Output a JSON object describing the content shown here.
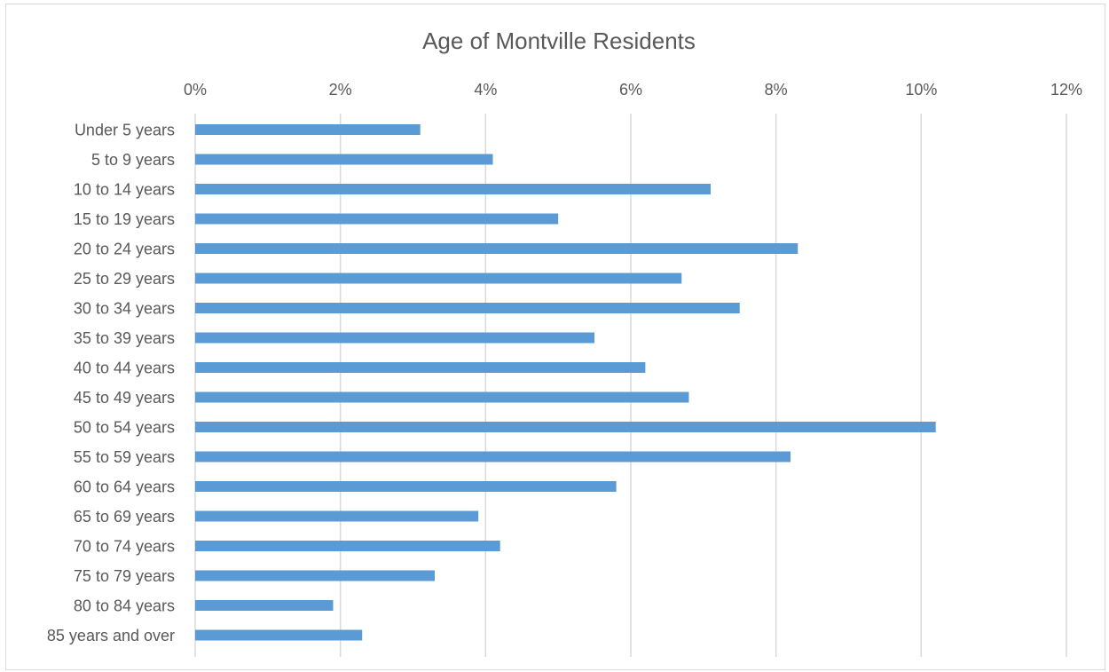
{
  "chart_data": {
    "type": "bar",
    "orientation": "horizontal",
    "title": "Age of Montville Residents",
    "xlabel": "",
    "ylabel": "",
    "xlim": [
      0,
      12
    ],
    "x_ticks": [
      0,
      2,
      4,
      6,
      8,
      10,
      12
    ],
    "x_tick_labels": [
      "0%",
      "2%",
      "4%",
      "6%",
      "8%",
      "10%",
      "12%"
    ],
    "x_axis_position": "top",
    "grid": true,
    "legend": "none",
    "categories": [
      "Under 5 years",
      "5 to 9 years",
      "10 to 14 years",
      "15 to 19 years",
      "20 to 24 years",
      "25 to 29 years",
      "30 to 34 years",
      "35 to 39 years",
      "40 to 44 years",
      "45 to 49 years",
      "50 to 54 years",
      "55 to 59 years",
      "60 to 64 years",
      "65 to 69 years",
      "70 to 74 years",
      "75 to 79 years",
      "80 to 84 years",
      "85 years and over"
    ],
    "values": [
      3.1,
      4.1,
      7.1,
      5.0,
      8.3,
      6.7,
      7.5,
      5.5,
      6.2,
      6.8,
      10.2,
      8.2,
      5.8,
      3.9,
      4.2,
      3.3,
      1.9,
      2.3
    ],
    "unit": "%",
    "colors": {
      "bar": "#5b9bd5",
      "grid": "#d9d9d9",
      "text": "#595959"
    }
  }
}
